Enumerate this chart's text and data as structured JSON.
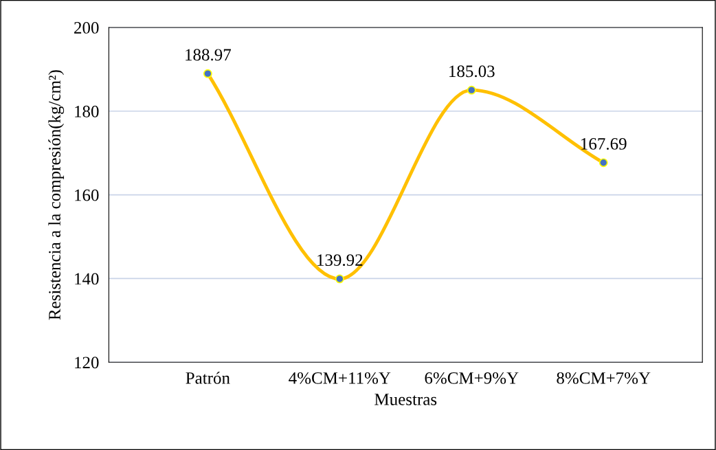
{
  "chart_data": {
    "type": "line",
    "xlabel": "Muestras",
    "ylabel": "Resistencia a la compresión(kg/cm²)",
    "categories": [
      "Patrón",
      "4%CM+11%Y",
      "6%CM+9%Y",
      "8%CM+7%Y"
    ],
    "series": [
      {
        "color": "#ffc000",
        "values": [
          188.97,
          139.92,
          185.03,
          167.69
        ]
      }
    ],
    "ylim": [
      120,
      200
    ],
    "yticks": [
      120,
      140,
      160,
      180,
      200
    ],
    "grid": "y",
    "data_labels": true,
    "marker": "circle",
    "line_style": "solid"
  }
}
